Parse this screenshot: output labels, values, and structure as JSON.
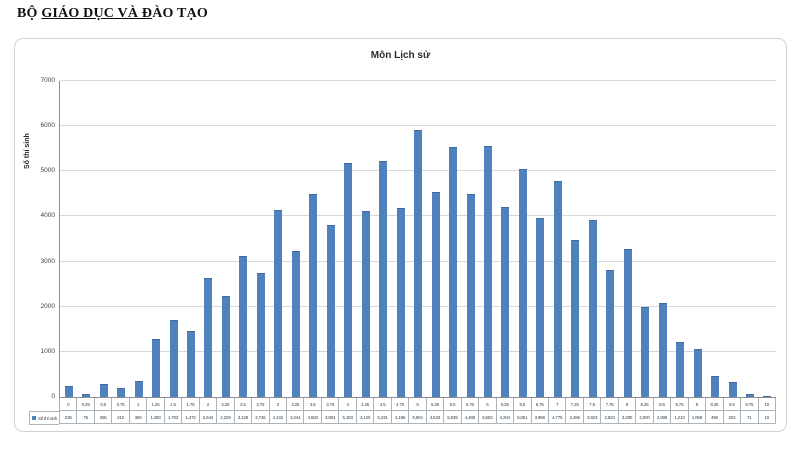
{
  "header": {
    "prefix": "BỘ ",
    "underlined": "GIÁO DỤC VÀ Đ",
    "suffix": "ÀO TẠO"
  },
  "chart_data": {
    "type": "bar",
    "title": "Môn Lịch sử",
    "xlabel": "",
    "ylabel": "Số thí sinh",
    "series_name": "Số thí sinh",
    "legend_position": "data-table-left",
    "grid": true,
    "ylim": [
      0,
      7000
    ],
    "yticks": [
      0,
      1000,
      2000,
      3000,
      4000,
      5000,
      6000,
      7000
    ],
    "bar_color": "#4f81bd",
    "categories": [
      "0",
      "0.25",
      "0.5",
      "0.75",
      "1",
      "1.25",
      "1.5",
      "1.75",
      "2",
      "2.25",
      "2.5",
      "2.75",
      "3",
      "3.25",
      "3.5",
      "3.75",
      "4",
      "4.25",
      "4.5",
      "4.75",
      "5",
      "5.25",
      "5.5",
      "5.75",
      "6",
      "6.25",
      "6.5",
      "6.75",
      "7",
      "7.25",
      "7.5",
      "7.75",
      "8",
      "8.25",
      "8.5",
      "8.75",
      "9",
      "9.25",
      "9.5",
      "9.75",
      "10"
    ],
    "values": [
      236,
      75,
      285,
      210,
      365,
      1280,
      1703,
      1472,
      2644,
      2229,
      3128,
      2746,
      4132,
      3244,
      4503,
      3804,
      5183,
      4120,
      5231,
      4196,
      5904,
      4533,
      5539,
      4488,
      5553,
      4204,
      5051,
      3969,
      4775,
      3486,
      3923,
      2823,
      3280,
      2000,
      2089,
      1213,
      1069,
      459,
      323,
      71,
      10
    ],
    "value_labels": [
      "236",
      "75",
      "285",
      "210",
      "365",
      "1,280",
      "1,703",
      "1,472",
      "2,644",
      "2,229",
      "3,128",
      "2,746",
      "4,132",
      "3,244",
      "4,503",
      "3,804",
      "5,183",
      "4,120",
      "5,231",
      "4,196",
      "5,904",
      "4,533",
      "5,539",
      "4,488",
      "5,553",
      "4,204",
      "5,051",
      "3,969",
      "4,775",
      "3,486",
      "3,923",
      "2,823",
      "3,280",
      "2,000",
      "2,089",
      "1,213",
      "1,069",
      "459",
      "323",
      "71",
      "10"
    ]
  }
}
